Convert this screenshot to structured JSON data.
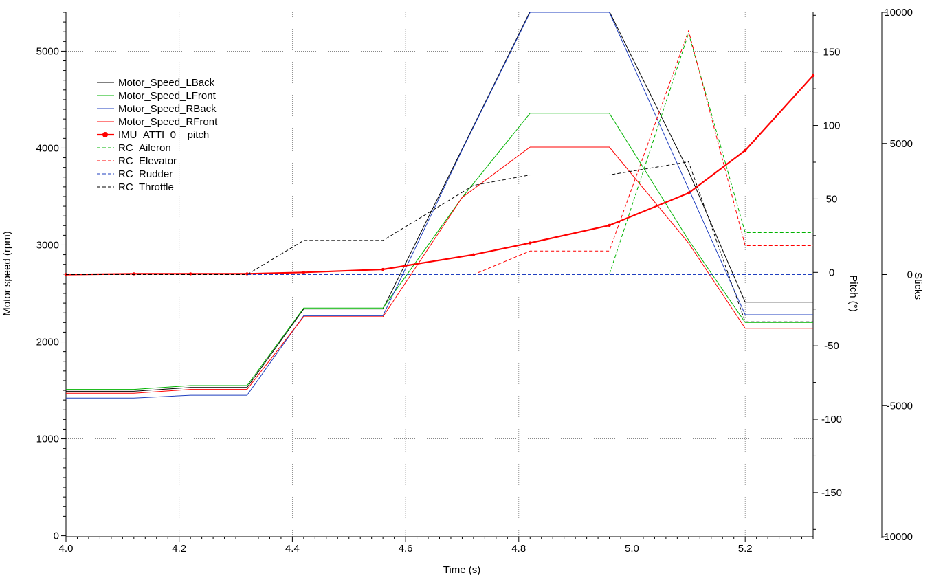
{
  "chart_data": {
    "type": "line",
    "xlabel": "Time (s)",
    "ylabel_left": "Motor speed (rpm)",
    "ylabel_right1": "Pitch (°)",
    "ylabel_right2": "Sticks",
    "xlim": [
      4.0,
      5.32
    ],
    "ylim_left": [
      -10,
      5400
    ],
    "ylim_right1": [
      -180,
      177
    ],
    "ylim_right2": [
      -10000,
      10000
    ],
    "grid": true,
    "legend_position": "upper-left",
    "x_ticks": [
      {
        "v": 4.0,
        "label": "4.0"
      },
      {
        "v": 4.2,
        "label": "4.2"
      },
      {
        "v": 4.4,
        "label": "4.4"
      },
      {
        "v": 4.6,
        "label": "4.6"
      },
      {
        "v": 4.8,
        "label": "4.8"
      },
      {
        "v": 5.0,
        "label": "5.0"
      },
      {
        "v": 5.2,
        "label": "5.2"
      }
    ],
    "y_left_ticks": [
      {
        "v": 0,
        "label": "0"
      },
      {
        "v": 1000,
        "label": "1000"
      },
      {
        "v": 2000,
        "label": "2000"
      },
      {
        "v": 3000,
        "label": "3000"
      },
      {
        "v": 4000,
        "label": "4000"
      },
      {
        "v": 5000,
        "label": "5000"
      }
    ],
    "y_right1_ticks": [
      {
        "v": 150,
        "label": "150"
      },
      {
        "v": 100,
        "label": "100"
      },
      {
        "v": 50,
        "label": "50"
      },
      {
        "v": 0,
        "label": "0"
      },
      {
        "v": -50,
        "label": "-50"
      },
      {
        "v": -100,
        "label": "-100"
      },
      {
        "v": -150,
        "label": "-150"
      }
    ],
    "y_right2_ticks": [
      {
        "v": 10000,
        "label": "10000"
      },
      {
        "v": 5000,
        "label": "5000"
      },
      {
        "v": 0,
        "label": "0"
      },
      {
        "v": -5000,
        "label": "-5000"
      },
      {
        "v": -10000,
        "label": "-10000"
      }
    ],
    "series": [
      {
        "name": "Motor_Speed_LBack",
        "axis": "left",
        "color": "#000000",
        "style": "solid",
        "x": [
          4.0,
          4.12,
          4.22,
          4.32,
          4.42,
          4.56,
          4.7,
          4.82,
          4.96,
          5.1,
          5.2,
          5.32
        ],
        "y": [
          1490,
          1490,
          1530,
          1530,
          2340,
          2340,
          3990,
          5410,
          5410,
          3760,
          2410,
          2410
        ]
      },
      {
        "name": "Motor_Speed_LFront",
        "axis": "left",
        "color": "#00b300",
        "style": "solid",
        "x": [
          4.0,
          4.12,
          4.22,
          4.32,
          4.42,
          4.56,
          4.7,
          4.82,
          4.96,
          5.1,
          5.2,
          5.32
        ],
        "y": [
          1510,
          1510,
          1550,
          1550,
          2350,
          2350,
          3490,
          4360,
          4360,
          3050,
          2200,
          2200
        ]
      },
      {
        "name": "Motor_Speed_RBack",
        "axis": "left",
        "color": "#1f3fbf",
        "style": "solid",
        "x": [
          4.0,
          4.12,
          4.22,
          4.32,
          4.42,
          4.56,
          4.7,
          4.82,
          4.96,
          5.1,
          5.2,
          5.32
        ],
        "y": [
          1420,
          1420,
          1450,
          1450,
          2270,
          2270,
          3980,
          5400,
          5400,
          3580,
          2280,
          2280
        ]
      },
      {
        "name": "Motor_Speed_RFront",
        "axis": "left",
        "color": "#ff0000",
        "style": "solid",
        "x": [
          4.0,
          4.12,
          4.22,
          4.32,
          4.42,
          4.56,
          4.7,
          4.82,
          4.96,
          5.1,
          5.2,
          5.32
        ],
        "y": [
          1470,
          1470,
          1510,
          1510,
          2260,
          2260,
          3490,
          4010,
          4010,
          3020,
          2140,
          2140
        ]
      },
      {
        "name": "IMU_ATTI_0__pitch",
        "axis": "right1",
        "color": "#ff0000",
        "style": "solid-marker",
        "x": [
          4.0,
          4.12,
          4.22,
          4.32,
          4.42,
          4.56,
          4.72,
          4.82,
          4.96,
          5.1,
          5.2,
          5.32
        ],
        "y": [
          -1.5,
          -1,
          -1,
          -1,
          0,
          2,
          12,
          20,
          32,
          54,
          83,
          134
        ]
      },
      {
        "name": "RC_Aileron",
        "axis": "right2",
        "color": "#00b300",
        "style": "dashed",
        "x": [
          4.0,
          4.96,
          4.96,
          5.1,
          5.2,
          5.32
        ],
        "y": [
          0,
          0,
          0,
          9200,
          1600,
          1600
        ]
      },
      {
        "name": "RC_Elevator",
        "axis": "right2",
        "color": "#ff0000",
        "style": "dashed",
        "x": [
          4.0,
          4.72,
          4.82,
          4.96,
          5.1,
          5.2,
          5.32
        ],
        "y": [
          0,
          0,
          900,
          900,
          9300,
          1100,
          1100
        ]
      },
      {
        "name": "RC_Rudder",
        "axis": "right2",
        "color": "#1f3fbf",
        "style": "dashed",
        "x": [
          4.0,
          5.32
        ],
        "y": [
          0,
          0
        ]
      },
      {
        "name": "RC_Throttle",
        "axis": "right2",
        "color": "#000000",
        "style": "dashed",
        "x": [
          4.0,
          4.32,
          4.42,
          4.56,
          4.72,
          4.82,
          4.96,
          5.1,
          5.2,
          5.32
        ],
        "y": [
          0,
          0,
          1300,
          1300,
          3400,
          3800,
          3800,
          4300,
          -1800,
          -1800
        ]
      }
    ]
  }
}
